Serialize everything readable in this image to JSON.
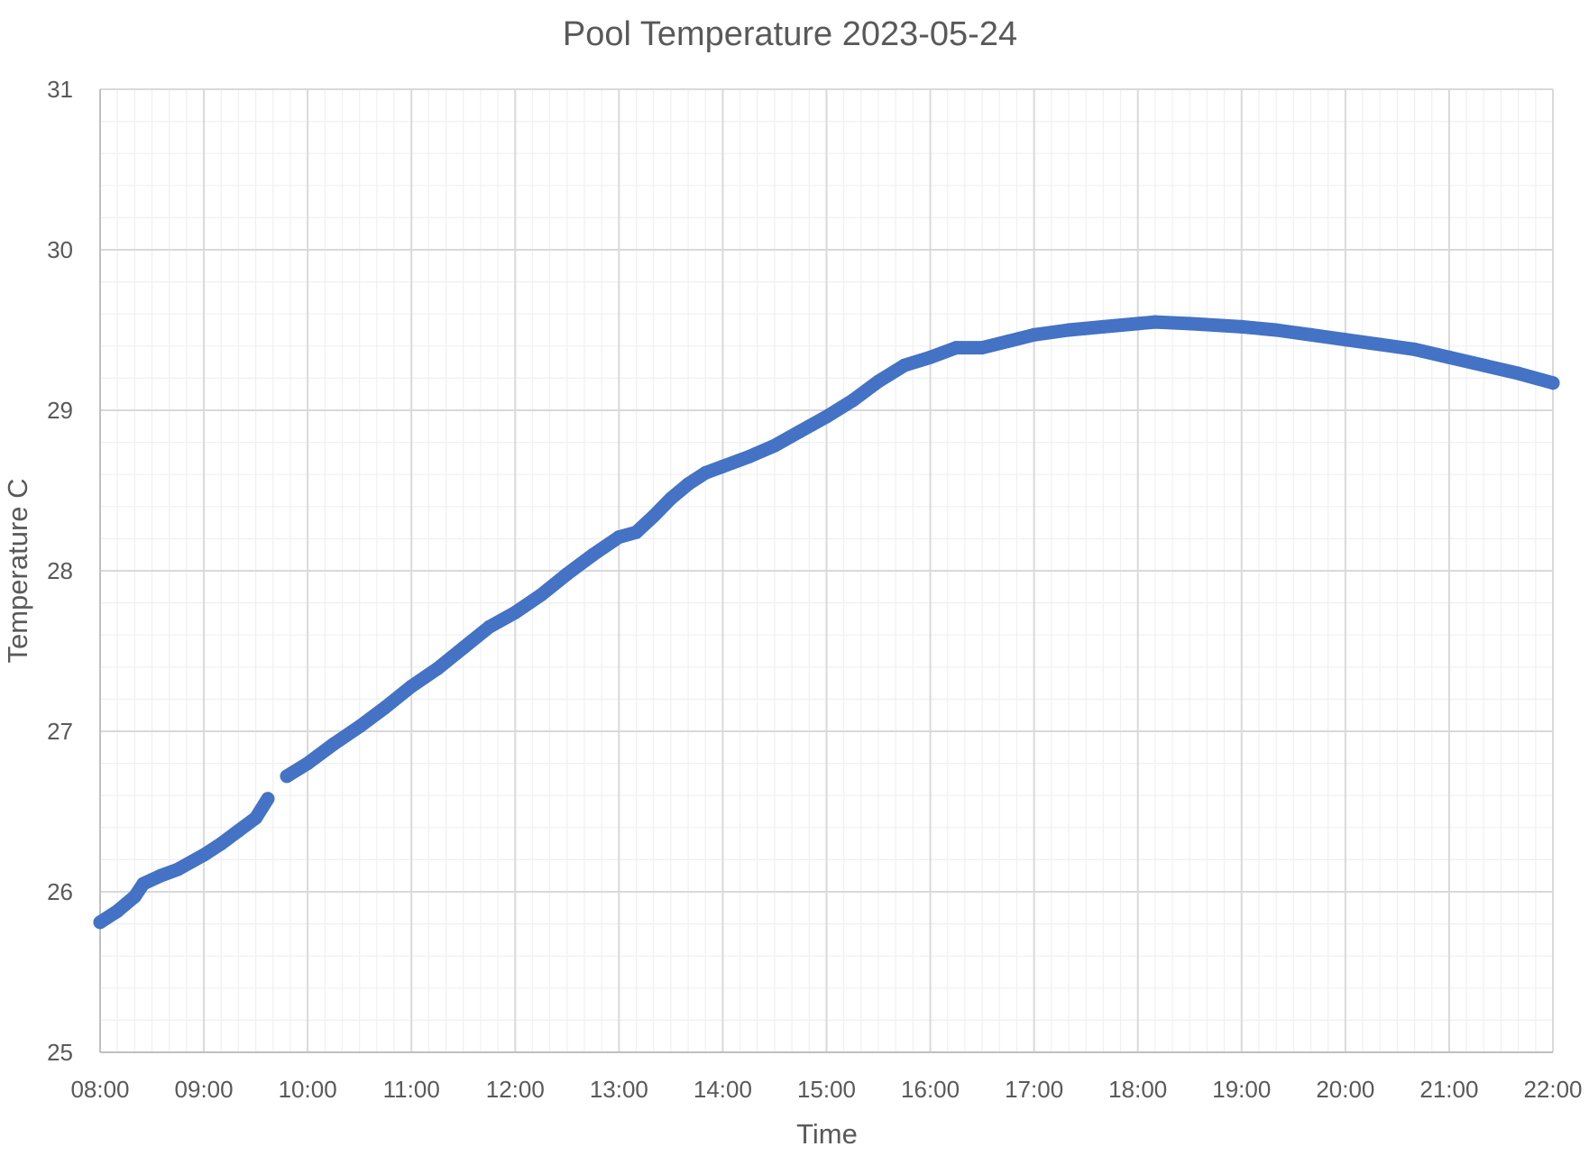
{
  "chart_data": {
    "type": "line",
    "title": "Pool Temperature 2023-05-24",
    "xlabel": "Time",
    "ylabel": "Temperature C",
    "xlim": [
      "08:00",
      "22:00"
    ],
    "ylim": [
      25,
      31
    ],
    "x_ticks": [
      "08:00",
      "09:00",
      "10:00",
      "11:00",
      "12:00",
      "13:00",
      "14:00",
      "15:00",
      "16:00",
      "17:00",
      "18:00",
      "19:00",
      "20:00",
      "21:00",
      "22:00"
    ],
    "y_ticks": [
      "25",
      "26",
      "27",
      "28",
      "29",
      "30",
      "31"
    ],
    "grid": true,
    "legend": "none",
    "colors": {
      "series": "#4472c4"
    },
    "series": [
      {
        "segments": [
          [
            [
              "08:00",
              25.81
            ],
            [
              "08:10",
              25.88
            ],
            [
              "08:20",
              25.97
            ],
            [
              "08:25",
              26.05
            ],
            [
              "08:35",
              26.1
            ],
            [
              "08:45",
              26.14
            ],
            [
              "09:00",
              26.23
            ],
            [
              "09:10",
              26.3
            ],
            [
              "09:20",
              26.38
            ],
            [
              "09:30",
              26.46
            ],
            [
              "09:37",
              26.58
            ]
          ],
          [
            [
              "09:48",
              26.72
            ],
            [
              "10:00",
              26.8
            ],
            [
              "10:15",
              26.92
            ],
            [
              "10:30",
              27.03
            ],
            [
              "10:45",
              27.15
            ],
            [
              "11:00",
              27.28
            ],
            [
              "11:15",
              27.39
            ],
            [
              "11:30",
              27.52
            ],
            [
              "11:45",
              27.65
            ],
            [
              "12:00",
              27.74
            ],
            [
              "12:15",
              27.85
            ],
            [
              "12:30",
              27.98
            ],
            [
              "12:45",
              28.1
            ],
            [
              "13:00",
              28.21
            ],
            [
              "13:10",
              28.24
            ],
            [
              "13:20",
              28.34
            ],
            [
              "13:30",
              28.45
            ],
            [
              "13:40",
              28.54
            ],
            [
              "13:50",
              28.61
            ],
            [
              "14:00",
              28.65
            ],
            [
              "14:15",
              28.71
            ],
            [
              "14:30",
              28.78
            ],
            [
              "14:45",
              28.87
            ],
            [
              "15:00",
              28.96
            ],
            [
              "15:15",
              29.06
            ],
            [
              "15:30",
              29.18
            ],
            [
              "15:45",
              29.28
            ],
            [
              "16:00",
              29.33
            ],
            [
              "16:15",
              29.39
            ],
            [
              "16:30",
              29.39
            ],
            [
              "16:45",
              29.43
            ],
            [
              "17:00",
              29.47
            ],
            [
              "17:20",
              29.5
            ],
            [
              "17:40",
              29.52
            ],
            [
              "18:00",
              29.54
            ],
            [
              "18:10",
              29.55
            ],
            [
              "18:30",
              29.54
            ],
            [
              "19:00",
              29.52
            ],
            [
              "19:20",
              29.5
            ],
            [
              "19:40",
              29.47
            ],
            [
              "20:00",
              29.44
            ],
            [
              "20:20",
              29.41
            ],
            [
              "20:40",
              29.38
            ],
            [
              "21:00",
              29.33
            ],
            [
              "21:20",
              29.28
            ],
            [
              "21:40",
              29.23
            ],
            [
              "22:00",
              29.17
            ]
          ]
        ]
      }
    ]
  }
}
